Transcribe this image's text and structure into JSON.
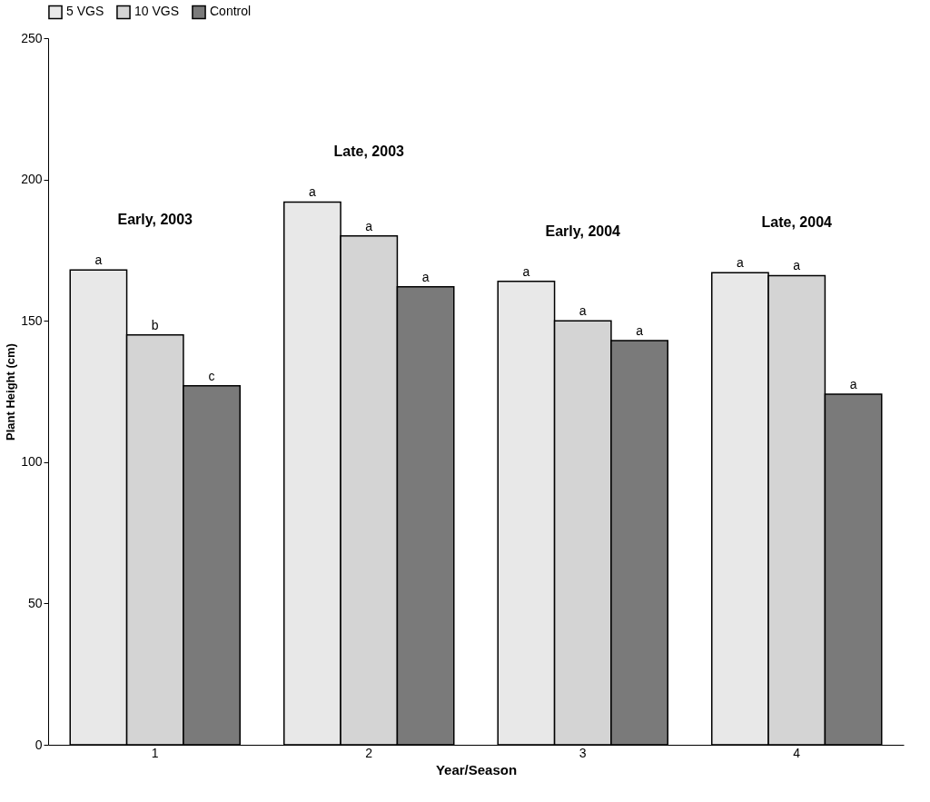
{
  "chart_data": {
    "type": "bar",
    "xlabel": "Year/Season",
    "ylabel": "Plant Height (cm)",
    "categories": [
      "1",
      "2",
      "3",
      "4"
    ],
    "series": [
      {
        "name": "5 VGS",
        "color": "#e8e8e8",
        "values": [
          168,
          192,
          164,
          167
        ],
        "value_labels": [
          "a",
          "a",
          "a",
          "a"
        ]
      },
      {
        "name": "10 VGS",
        "color": "#d4d4d4",
        "values": [
          145,
          180,
          150,
          166
        ],
        "value_labels": [
          "b",
          "a",
          "a",
          "a"
        ]
      },
      {
        "name": "Control",
        "color": "#7a7a7a",
        "values": [
          127,
          162,
          143,
          124
        ],
        "value_labels": [
          "c",
          "a",
          "a",
          "a"
        ]
      }
    ],
    "annotations": [
      "Early, 2003",
      "Late, 2003",
      "Early, 2004",
      "Late, 2004"
    ],
    "ylim": [
      0,
      250
    ],
    "yticks": [
      0,
      50,
      100,
      150,
      200,
      250
    ],
    "grid": false,
    "legend": "top"
  }
}
